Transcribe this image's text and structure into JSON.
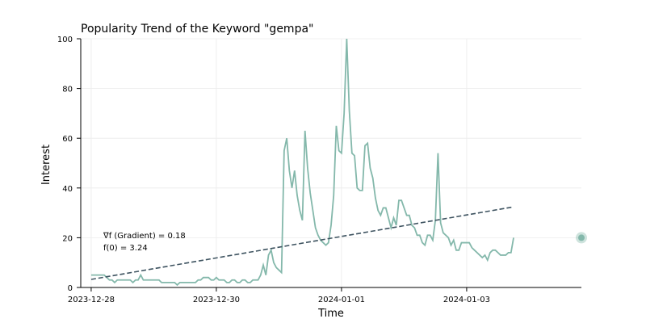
{
  "chart_data": {
    "type": "line",
    "title": "Popularity Trend of the Keyword \"gempa\"",
    "xlabel": "Time",
    "ylabel": "Interest",
    "ylim": [
      0,
      100
    ],
    "xlim": [
      "2023-12-27T20:00",
      "2024-01-04T20:00"
    ],
    "grid": true,
    "x_ticks": [
      "2023-12-28",
      "2023-12-30",
      "2024-01-01",
      "2024-01-03"
    ],
    "y_ticks": [
      0,
      20,
      40,
      60,
      80,
      100
    ],
    "colors": {
      "series": "#84b8ab",
      "trend": "#3e5360",
      "highlight": "#84b8ab"
    },
    "series": [
      {
        "x_start": "2023-12-28T00:00",
        "step_hours": 1,
        "values": [
          5,
          5,
          5,
          5,
          5,
          5,
          4,
          3,
          3,
          2,
          3,
          3,
          3,
          3,
          3,
          3,
          2,
          3,
          3,
          5,
          3,
          3,
          3,
          3,
          3,
          3,
          3,
          2,
          2,
          2,
          2,
          2,
          2,
          1,
          2,
          2,
          2,
          2,
          2,
          2,
          2,
          3,
          3,
          4,
          4,
          4,
          3,
          3,
          4,
          3,
          3,
          3,
          2,
          2,
          3,
          3,
          2,
          2,
          3,
          3,
          2,
          2,
          3,
          3,
          3,
          5,
          9,
          5,
          13,
          15,
          10,
          8,
          7,
          6,
          55,
          60,
          47,
          40,
          47,
          37,
          31,
          27,
          63,
          48,
          38,
          31,
          24,
          21,
          19,
          18,
          17,
          18,
          25,
          37,
          65,
          55,
          54,
          70,
          100,
          71,
          54,
          53,
          40,
          39,
          39,
          57,
          58,
          48,
          44,
          36,
          31,
          29,
          32,
          32,
          28,
          24,
          28,
          25,
          35,
          35,
          32,
          29,
          29,
          25,
          24,
          21,
          21,
          18,
          17,
          21,
          21,
          19,
          27,
          54,
          26,
          22,
          21,
          20,
          17,
          19,
          15,
          15,
          18,
          18,
          18,
          18,
          16,
          15,
          14,
          13,
          12,
          13,
          11,
          14,
          15,
          15,
          14,
          13,
          13,
          13,
          14,
          14,
          20
        ]
      }
    ],
    "trendline": {
      "intercept": 3.24,
      "slope": 0.18
    },
    "highlight_point": {
      "x": "2024-01-04T20:00",
      "y": 20
    },
    "annotations": [
      "∇f (Gradient) = 0.18",
      "f(0) = 3.24"
    ]
  }
}
